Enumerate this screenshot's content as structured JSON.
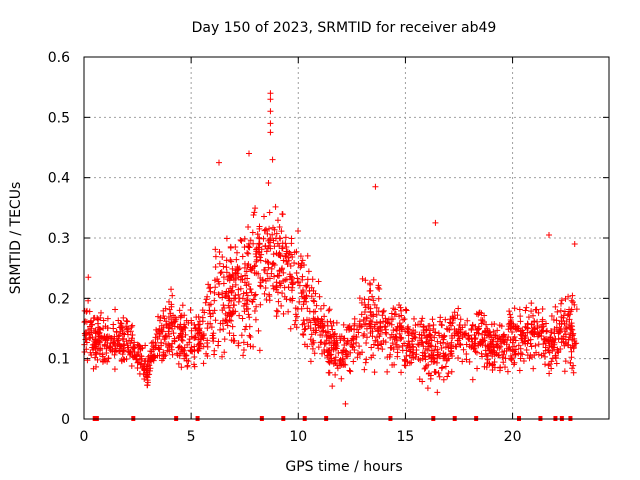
{
  "chart_data": {
    "type": "scatter",
    "title": "Day 150 of 2023, SRMTID for receiver ab49",
    "xlabel": "GPS time / hours",
    "ylabel": "SRMTID / TECUs",
    "xlim": [
      0,
      24.5
    ],
    "ylim": [
      0,
      0.6
    ],
    "x_ticks": [
      0,
      5,
      10,
      15,
      20
    ],
    "x_tick_labels": [
      "0",
      "5",
      "10",
      "15",
      "20"
    ],
    "y_ticks": [
      0,
      0.1,
      0.2,
      0.3,
      0.4,
      0.5,
      0.6
    ],
    "y_tick_labels": [
      "0",
      "0.1",
      "0.2",
      "0.3",
      "0.4",
      "0.5",
      "0.6"
    ],
    "grid": true,
    "marker": "plus",
    "color": "#ff0000",
    "series_points_count_estimate": 2000,
    "profile_x": [
      0,
      0.5,
      1,
      1.5,
      2,
      2.5,
      3,
      3.5,
      4,
      4.5,
      5,
      5.5,
      6,
      6.5,
      7,
      7.5,
      8,
      8.5,
      9,
      9.5,
      10,
      10.5,
      11,
      11.5,
      12,
      12.5,
      13,
      13.5,
      14,
      14.5,
      15,
      15.5,
      16,
      16.5,
      17,
      17.5,
      18,
      18.5,
      19,
      19.5,
      20,
      20.5,
      21,
      21.5,
      22,
      22.5,
      23
    ],
    "profile_mean": [
      0.15,
      0.13,
      0.12,
      0.13,
      0.13,
      0.11,
      0.08,
      0.14,
      0.15,
      0.14,
      0.13,
      0.14,
      0.18,
      0.2,
      0.21,
      0.22,
      0.25,
      0.27,
      0.27,
      0.25,
      0.22,
      0.18,
      0.16,
      0.12,
      0.11,
      0.13,
      0.15,
      0.17,
      0.15,
      0.14,
      0.13,
      0.13,
      0.12,
      0.11,
      0.13,
      0.14,
      0.13,
      0.13,
      0.12,
      0.12,
      0.13,
      0.14,
      0.14,
      0.13,
      0.13,
      0.15,
      0.14
    ],
    "profile_spread": [
      0.05,
      0.04,
      0.04,
      0.04,
      0.04,
      0.03,
      0.03,
      0.04,
      0.05,
      0.05,
      0.05,
      0.05,
      0.08,
      0.09,
      0.09,
      0.1,
      0.1,
      0.1,
      0.1,
      0.09,
      0.08,
      0.06,
      0.06,
      0.05,
      0.04,
      0.05,
      0.07,
      0.07,
      0.06,
      0.05,
      0.05,
      0.05,
      0.05,
      0.05,
      0.05,
      0.05,
      0.05,
      0.05,
      0.04,
      0.04,
      0.05,
      0.05,
      0.05,
      0.05,
      0.05,
      0.06,
      0.06
    ],
    "highlight_points": [
      {
        "x": 8.7,
        "y": 0.54
      },
      {
        "x": 8.7,
        "y": 0.53
      },
      {
        "x": 8.7,
        "y": 0.51
      },
      {
        "x": 8.7,
        "y": 0.49
      },
      {
        "x": 8.7,
        "y": 0.475
      },
      {
        "x": 8.8,
        "y": 0.43
      },
      {
        "x": 7.7,
        "y": 0.44
      },
      {
        "x": 6.3,
        "y": 0.425
      },
      {
        "x": 13.6,
        "y": 0.385
      },
      {
        "x": 16.4,
        "y": 0.325
      },
      {
        "x": 21.7,
        "y": 0.305
      },
      {
        "x": 12.2,
        "y": 0.025
      },
      {
        "x": 0.2,
        "y": 0.235
      },
      {
        "x": 22.9,
        "y": 0.29
      }
    ],
    "event_markers_x": [
      0.5,
      0.6,
      2.3,
      4.3,
      5.3,
      8.3,
      9.3,
      10.3,
      11.3,
      14.3,
      16.3,
      17.3,
      18.3,
      20.3,
      21.3,
      22.0,
      22.3,
      22.7
    ]
  }
}
